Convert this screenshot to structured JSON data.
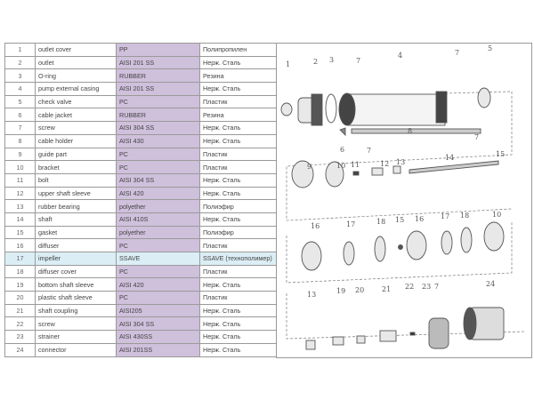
{
  "parts_table": {
    "rows": [
      {
        "num": "1",
        "name": "outlet cover",
        "material": "PP",
        "material_ru": "Полипропилен"
      },
      {
        "num": "2",
        "name": "outlet",
        "material": "AISI 201 SS",
        "material_ru": "Нерж. Сталь"
      },
      {
        "num": "3",
        "name": "O-ring",
        "material": "RUBBER",
        "material_ru": "Резина"
      },
      {
        "num": "4",
        "name": "pump external casing",
        "material": "AISI 201 SS",
        "material_ru": "Нерж. Сталь"
      },
      {
        "num": "5",
        "name": "check valve",
        "material": "PC",
        "material_ru": "Пластик"
      },
      {
        "num": "6",
        "name": "cable jacket",
        "material": "RUBBER",
        "material_ru": "Резина"
      },
      {
        "num": "7",
        "name": "screw",
        "material": "AISI 304 SS",
        "material_ru": "Нерж. Сталь"
      },
      {
        "num": "8",
        "name": "cable holder",
        "material": "AISI 430",
        "material_ru": "Нерж. Сталь"
      },
      {
        "num": "9",
        "name": "guide part",
        "material": "PC",
        "material_ru": "Пластик"
      },
      {
        "num": "10",
        "name": "bracket",
        "material": "PC",
        "material_ru": "Пластик"
      },
      {
        "num": "11",
        "name": "bolt",
        "material": "AISI 304 SS",
        "material_ru": "Нерж. Сталь"
      },
      {
        "num": "12",
        "name": "upper shaft sleeve",
        "material": "AISI 420",
        "material_ru": "Нерж. Сталь"
      },
      {
        "num": "13",
        "name": "rubber bearing",
        "material": "polyether",
        "material_ru": "Полиэфир"
      },
      {
        "num": "14",
        "name": "shaft",
        "material": "AISI 410S",
        "material_ru": "Нерж. Сталь"
      },
      {
        "num": "15",
        "name": "gasket",
        "material": "polyether",
        "material_ru": "Полиэфир"
      },
      {
        "num": "16",
        "name": "diffuser",
        "material": "PC",
        "material_ru": "Пластик"
      },
      {
        "num": "17",
        "name": "impeller",
        "material": "SSAVE",
        "material_ru": "SSAVE (технополимер)",
        "highlighted": true
      },
      {
        "num": "18",
        "name": "diffuser cover",
        "material": "PC",
        "material_ru": "Пластик"
      },
      {
        "num": "19",
        "name": "bottom shaft sleeve",
        "material": "AISI 420",
        "material_ru": "Нерж. Сталь"
      },
      {
        "num": "20",
        "name": "plastic shaft sleeve",
        "material": "PC",
        "material_ru": "Пластик"
      },
      {
        "num": "21",
        "name": "shaft coupling",
        "material": "AISI205",
        "material_ru": "Нерж. Сталь"
      },
      {
        "num": "22",
        "name": "screw",
        "material": "AISI 304 SS",
        "material_ru": "Нерж. Сталь"
      },
      {
        "num": "23",
        "name": "strainer",
        "material": "AISI 430SS",
        "material_ru": "Нерж. Сталь"
      },
      {
        "num": "24",
        "name": "connector",
        "material": "AISI 201SS",
        "material_ru": "Нерж. Сталь"
      }
    ]
  },
  "diagram": {
    "callouts": [
      "1",
      "2",
      "3",
      "7",
      "4",
      "7",
      "5",
      "6",
      "7",
      "8",
      "7",
      "9",
      "10",
      "11",
      "12",
      "13",
      "14",
      "15",
      "16",
      "17",
      "18",
      "15",
      "16",
      "17",
      "18",
      "10",
      "13",
      "19",
      "20",
      "21",
      "22",
      "23",
      "7",
      "24"
    ],
    "colors": {
      "material_column": "#cfc0dc",
      "highlight_row": "#dbeef5",
      "line": "#777777"
    }
  }
}
